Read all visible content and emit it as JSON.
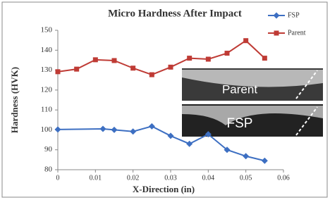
{
  "chart_data": {
    "type": "line",
    "title": "Micro Hardness After Impact",
    "x_label": "X-Direction (in)",
    "y_label": "Hardness (HVK)",
    "xlim": [
      0,
      0.06
    ],
    "xticks": [
      0,
      0.01,
      0.02,
      0.03,
      0.04,
      0.05,
      0.06
    ],
    "ylim": [
      80,
      150
    ],
    "yticks": [
      80,
      90,
      100,
      110,
      120,
      130,
      140,
      150
    ],
    "grid": false,
    "legend": "top-right",
    "series": [
      {
        "name": "FSP",
        "color": "#3d6fc2",
        "marker": "diamond",
        "x": [
          0,
          0.012,
          0.015,
          0.02,
          0.025,
          0.03,
          0.035,
          0.04,
          0.045,
          0.05,
          0.055
        ],
        "values": [
          100.2,
          100.5,
          100,
          99.2,
          101.8,
          97,
          93,
          97.8,
          90,
          86.8,
          84.5
        ]
      },
      {
        "name": "Parent",
        "color": "#bf3b35",
        "marker": "square",
        "x": [
          0,
          0.005,
          0.01,
          0.015,
          0.02,
          0.025,
          0.03,
          0.035,
          0.04,
          0.045,
          0.05,
          0.055
        ],
        "values": [
          129.2,
          130.5,
          135.2,
          134.8,
          131,
          127.7,
          131.5,
          136,
          135.5,
          138.5,
          144.8,
          136
        ]
      }
    ],
    "annotations": [
      "Parent",
      "FSP"
    ]
  }
}
